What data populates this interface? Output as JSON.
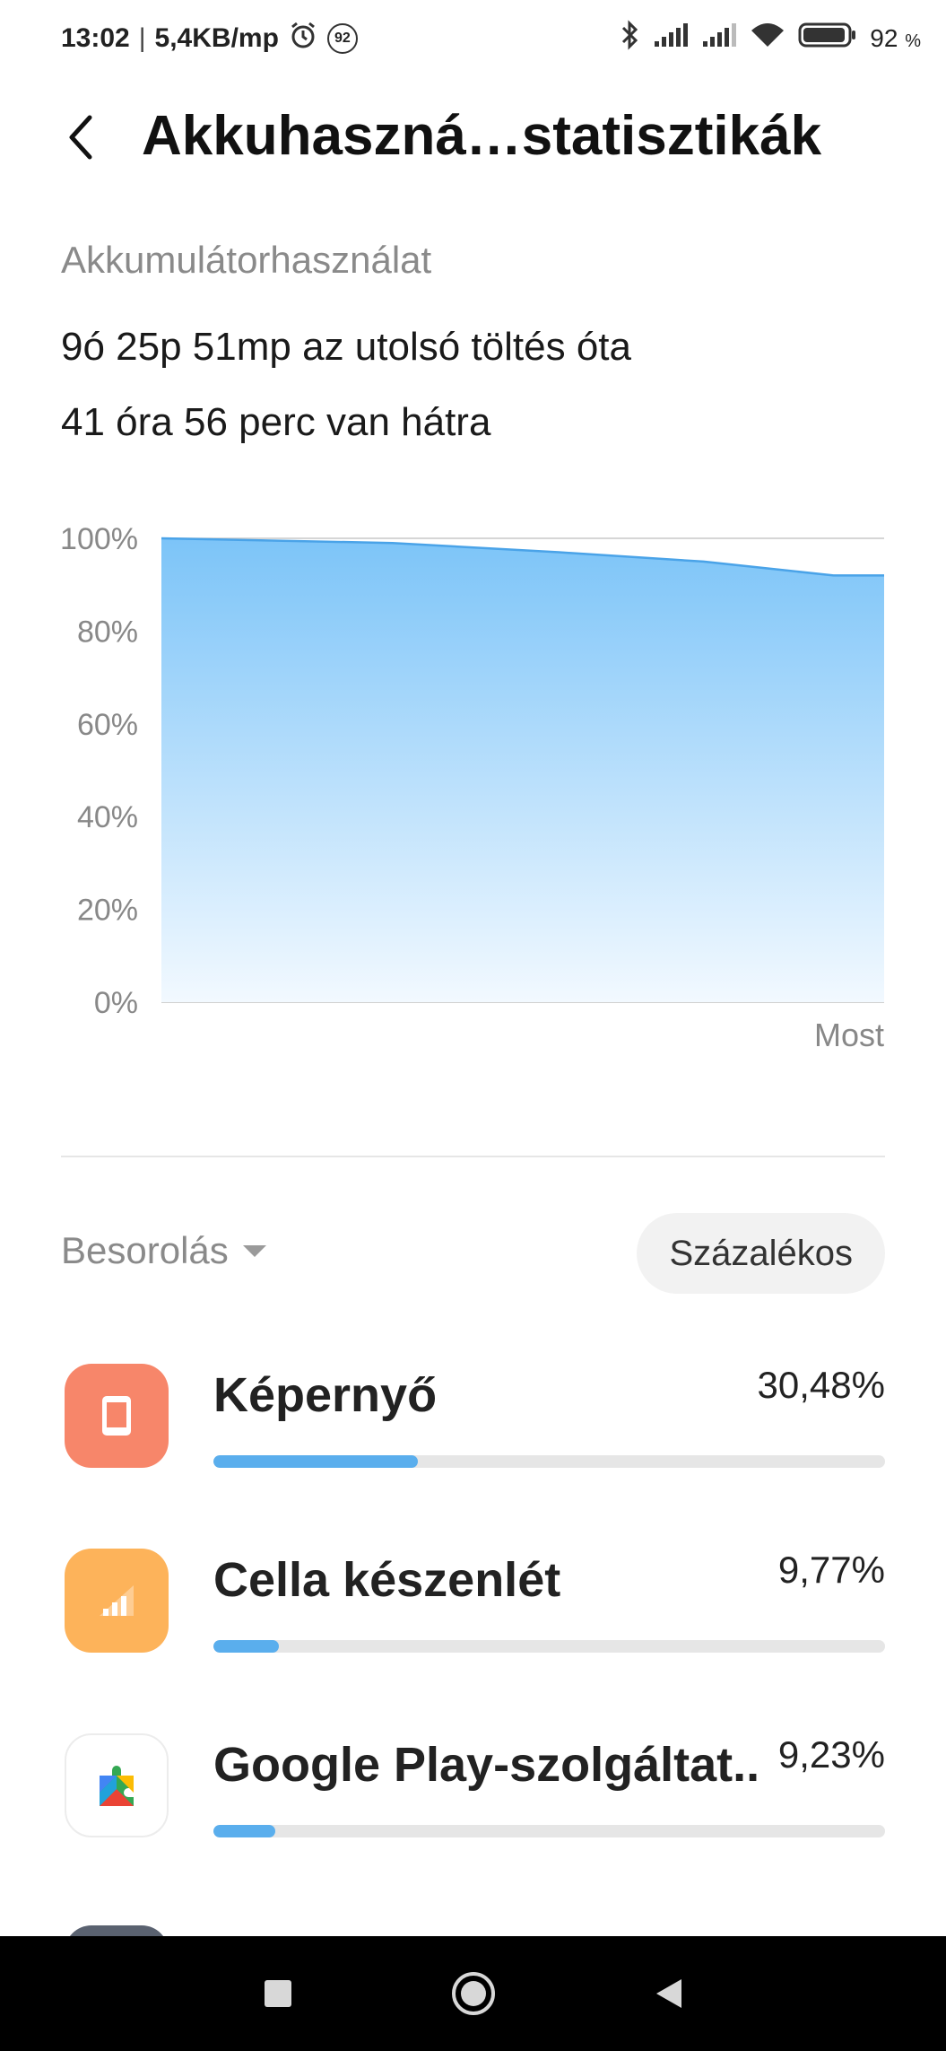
{
  "status_bar": {
    "time": "13:02",
    "separator": "|",
    "net_speed": "5,4KB/mp",
    "notification_count": "92",
    "battery": "92",
    "battery_unit": "%",
    "icons": [
      "alarm-icon",
      "bluetooth-icon",
      "signal-icon",
      "signal-icon",
      "wifi-icon",
      "battery-icon"
    ]
  },
  "header": {
    "title": "Akkuhaszná…statisztikák",
    "back_icon": "back-arrow-icon"
  },
  "summary": {
    "section_label": "Akkumulátorhasználat",
    "since_charge": "9ó 25p 51mp az utolsó töltés óta",
    "remaining": "41 óra 56 perc van hátra"
  },
  "chart_data": {
    "type": "area",
    "y_ticks": [
      "100%",
      "80%",
      "60%",
      "40%",
      "20%",
      "0%"
    ],
    "ylim": [
      0,
      100
    ],
    "x_label_end": "Most",
    "x": [
      0,
      0.32,
      0.55,
      0.75,
      0.93,
      1.0
    ],
    "y": [
      100,
      99,
      97,
      95,
      92,
      92
    ],
    "grid": true,
    "fill_color_top": "#7cc4f8",
    "fill_color_bottom": "#f2f9ff",
    "line_color": "#4aa3e8"
  },
  "sort": {
    "label": "Besorolás",
    "mode_button": "Százalékos"
  },
  "apps": [
    {
      "name": "Képernyő",
      "percent_label": "30,48%",
      "percent": 30.48,
      "icon": "screen-icon",
      "icon_bg": "#f7866a"
    },
    {
      "name": "Cella készenlét",
      "percent_label": "9,77%",
      "percent": 9.77,
      "icon": "cell-signal-icon",
      "icon_bg": "#fdb35a"
    },
    {
      "name": "Google Play-szolgáltat..",
      "percent_label": "9,23%",
      "percent": 9.23,
      "icon": "google-play-services-icon",
      "icon_bg": "#ffffff"
    }
  ],
  "navbar": {
    "icons": [
      "recents-square-icon",
      "home-circle-icon",
      "back-triangle-icon"
    ]
  }
}
